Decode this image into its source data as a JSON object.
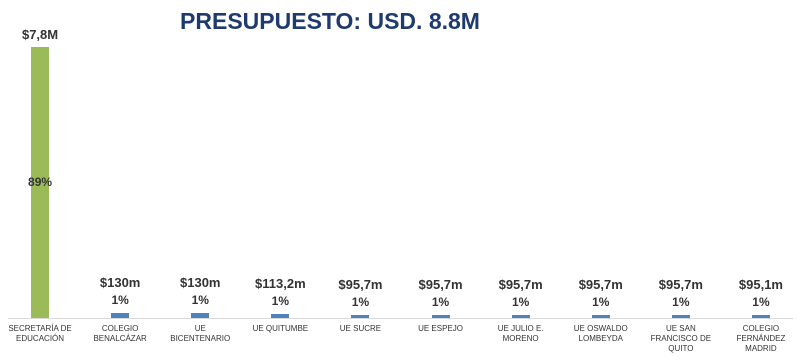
{
  "chart_data": {
    "type": "bar",
    "title": "PRESUPUESTO: USD. 8.8M",
    "categories": [
      "SECRETARÍA DE EDUCACIÓN",
      "COLEGIO BENALCÁZAR",
      "UE BICENTENARIO",
      "UE QUITUMBE",
      "UE SUCRE",
      "UE ESPEJO",
      "UE JULIO E. MORENO",
      "UE OSWALDO LOMBEYDA",
      "UE SAN FRANCISCO DE QUITO",
      "COLEGIO FERNÁNDEZ MADRID"
    ],
    "values": [
      7800000,
      130000,
      130000,
      113200,
      95700,
      95700,
      95700,
      95700,
      95700,
      95100
    ],
    "value_labels": [
      "$7,8M",
      "$130m",
      "$130m",
      "$113,2m",
      "$95,7m",
      "$95,7m",
      "$95,7m",
      "$95,7m",
      "$95,7m",
      "$95,1m"
    ],
    "percentages": [
      89,
      1,
      1,
      1,
      1,
      1,
      1,
      1,
      1,
      1
    ],
    "percentage_labels": [
      "89%",
      "1%",
      "1%",
      "1%",
      "1%",
      "1%",
      "1%",
      "1%",
      "1%",
      "1%"
    ],
    "colors": [
      "#9bbb59",
      "#4f81bd",
      "#4f81bd",
      "#4f81bd",
      "#4f81bd",
      "#4f81bd",
      "#4f81bd",
      "#4f81bd",
      "#4f81bd",
      "#4f81bd"
    ],
    "ylim": [
      0,
      7800000
    ]
  }
}
